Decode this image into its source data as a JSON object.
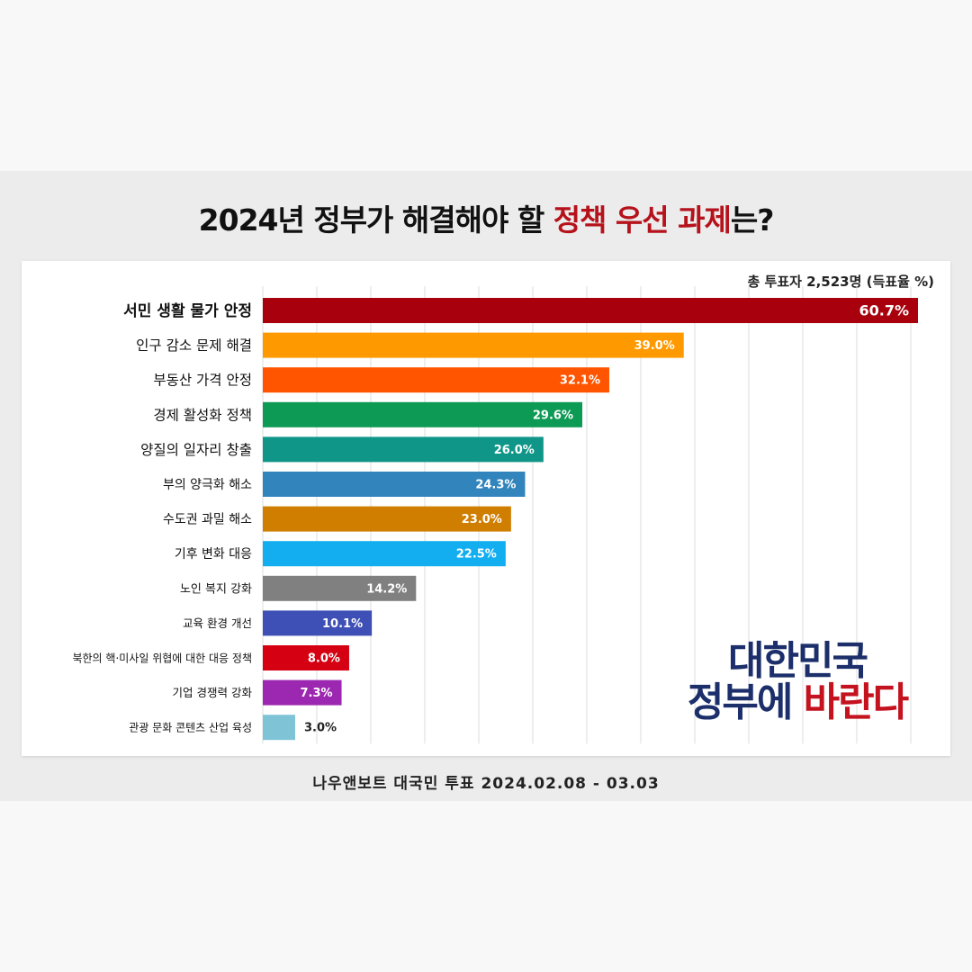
{
  "title": {
    "part1": "2024년 정부가 해결해야 할 ",
    "highlight": "정책 우선 과제",
    "part2": "는?"
  },
  "total_label": "총 투표자 2,523명 (득표율 %)",
  "footer": "나우앤보트 대국민 투표 2024.02.08 - 03.03",
  "logo": {
    "line1": "대한민국",
    "line2_a": "정부에 ",
    "line2_b": "바란다"
  },
  "chart_data": {
    "type": "bar",
    "orientation": "horizontal",
    "categories": [
      "서민 생활 물가 안정",
      "인구 감소 문제 해결",
      "부동산 가격 안정",
      "경제 활성화 정책",
      "양질의 일자리 창출",
      "부의 양극화 해소",
      "수도권 과밀 해소",
      "기후 변화 대응",
      "노인 복지 강화",
      "교육 환경 개선",
      "북한의 핵·미사일 위협에 대한 대응 정책",
      "기업 경쟁력 강화",
      "관광 문화 콘텐츠 산업 육성"
    ],
    "values": [
      60.7,
      39.0,
      32.1,
      29.6,
      26.0,
      24.3,
      23.0,
      22.5,
      14.2,
      10.1,
      8.0,
      7.3,
      3.0
    ],
    "value_labels": [
      "60.7%",
      "39.0%",
      "32.1%",
      "29.6%",
      "26.0%",
      "24.3%",
      "23.0%",
      "22.5%",
      "14.2%",
      "10.1%",
      "8.0%",
      "7.3%",
      "3.0%"
    ],
    "colors": [
      "#a8000c",
      "#ff9900",
      "#ff5500",
      "#0d9a55",
      "#0f9688",
      "#3285bc",
      "#cf7e00",
      "#12aef0",
      "#808080",
      "#3e4fb5",
      "#d50012",
      "#9c27b0",
      "#7fc4d6"
    ],
    "xlim": [
      0,
      60.7
    ],
    "grid": true
  }
}
